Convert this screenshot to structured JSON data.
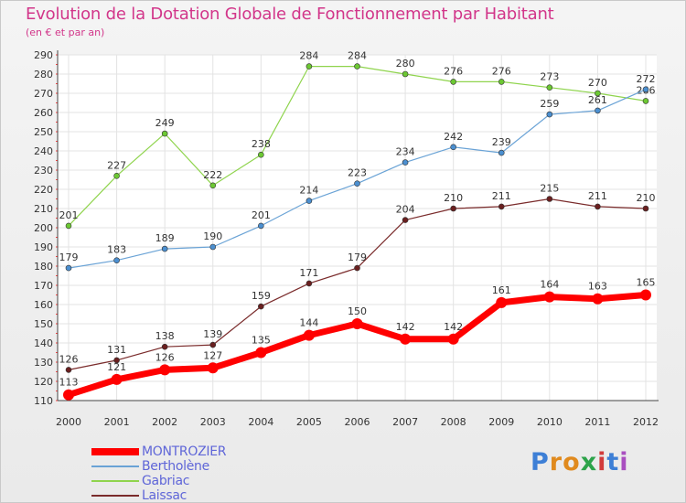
{
  "title": "Evolution de la Dotation Globale de Fonctionnement par Habitant",
  "subtitle": "(en € et par an)",
  "brand": {
    "letters": [
      "P",
      "r",
      "o",
      "x",
      "i",
      "t",
      "i"
    ],
    "colors": [
      "#3d7fd6",
      "#e08a1e",
      "#e08a1e",
      "#2da34a",
      "#d23b3b",
      "#3d7fd6",
      "#a94fc0"
    ]
  },
  "chart_data": {
    "type": "line",
    "title": "Evolution de la Dotation Globale de Fonctionnement par Habitant",
    "subtitle": "(en € et par an)",
    "x": [
      "2000",
      "2001",
      "2002",
      "2003",
      "2004",
      "2005",
      "2006",
      "2007",
      "2008",
      "2009",
      "2010",
      "2011",
      "2012"
    ],
    "ylim": [
      110,
      290
    ],
    "yticks": [
      110,
      120,
      130,
      140,
      150,
      160,
      170,
      180,
      190,
      200,
      210,
      220,
      230,
      240,
      250,
      260,
      270,
      280,
      290
    ],
    "grid": true,
    "legend_position": "bottom-left",
    "series": [
      {
        "name": "Gabriac",
        "color": "#8fd44d",
        "marker": "#6cc833",
        "width": 1.2,
        "values": [
          201,
          227,
          249,
          222,
          238,
          284,
          284,
          280,
          276,
          276,
          273,
          270,
          266
        ]
      },
      {
        "name": "Bertholène",
        "color": "#6aa3d6",
        "marker": "#4b8fd0",
        "width": 1.2,
        "values": [
          179,
          183,
          189,
          190,
          201,
          214,
          223,
          234,
          242,
          239,
          259,
          261,
          272
        ]
      },
      {
        "name": "Laissac",
        "color": "#7a2b2b",
        "marker": "#6a1f1f",
        "width": 1.2,
        "values": [
          126,
          131,
          138,
          139,
          159,
          171,
          179,
          204,
          210,
          211,
          215,
          211,
          210
        ]
      },
      {
        "name": "MONTROZIER",
        "color": "#ff0000",
        "marker": "#ff0000",
        "width": 7,
        "values": [
          113,
          121,
          126,
          127,
          135,
          144,
          150,
          142,
          142,
          161,
          164,
          163,
          165
        ]
      }
    ],
    "legend": [
      "MONTROZIER",
      "Bertholène",
      "Gabriac",
      "Laissac"
    ]
  }
}
